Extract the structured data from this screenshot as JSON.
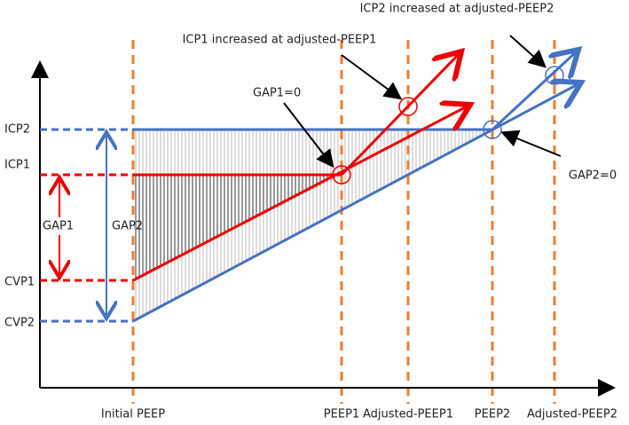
{
  "y_labels": [
    "ICP2",
    "ICP1",
    "CVP1",
    "CVP2"
  ],
  "x_labels": [
    "Initial PEEP",
    "PEEP1",
    "Adjusted-PEEP1",
    "PEEP2",
    "Adjusted-PEEP2"
  ],
  "gap_labels": [
    "GAP1",
    "GAP2"
  ],
  "annotations": [
    "GAP1=0",
    "ICP1 increased at adjusted-PEEP1",
    "ICP2 increased at adjusted-PEEP2",
    "GAP2=0"
  ]
}
